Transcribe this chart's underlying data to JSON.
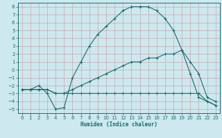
{
  "xlabel": "Humidex (Indice chaleur)",
  "background_color": "#cde8ee",
  "grid_color": "#aacdd6",
  "line_color": "#1a6b6b",
  "xlim": [
    -0.5,
    23.5
  ],
  "ylim": [
    -5.5,
    8.5
  ],
  "xticks": [
    0,
    1,
    2,
    3,
    4,
    5,
    6,
    7,
    8,
    9,
    10,
    11,
    12,
    13,
    14,
    15,
    16,
    17,
    18,
    19,
    20,
    21,
    22,
    23
  ],
  "yticks": [
    -5,
    -4,
    -3,
    -2,
    -1,
    0,
    1,
    2,
    3,
    4,
    5,
    6,
    7,
    8
  ],
  "line1_x": [
    0,
    1,
    2,
    3,
    4,
    5,
    6,
    7,
    8,
    9,
    10,
    11,
    12,
    13,
    14,
    15,
    16,
    17,
    18,
    19,
    20,
    21,
    22,
    23
  ],
  "line1_y": [
    -2.5,
    -2.5,
    -2,
    -3,
    -5,
    -4.8,
    -1,
    1,
    3,
    4.5,
    5.5,
    6.5,
    7.5,
    8,
    8,
    8,
    7.5,
    6.5,
    5,
    2.5,
    -0.5,
    -3.5,
    -4,
    -4.5
  ],
  "line2_x": [
    0,
    1,
    2,
    3,
    4,
    5,
    6,
    7,
    8,
    9,
    10,
    11,
    12,
    13,
    14,
    15,
    16,
    17,
    18,
    19,
    20,
    21,
    22,
    23
  ],
  "line2_y": [
    -2.5,
    -2.5,
    -2.5,
    -2.5,
    -3,
    -3,
    -2.5,
    -2,
    -1.5,
    -1,
    -0.5,
    0,
    0.5,
    1,
    1,
    1.5,
    1.5,
    2,
    2,
    2.5,
    1,
    -0.5,
    -3.5,
    -4
  ],
  "line3_x": [
    0,
    1,
    2,
    3,
    4,
    5,
    6,
    7,
    8,
    9,
    10,
    11,
    12,
    13,
    14,
    15,
    16,
    17,
    18,
    19,
    20,
    21,
    22,
    23
  ],
  "line3_y": [
    -2.5,
    -2.5,
    -2.5,
    -2.5,
    -3,
    -3,
    -3,
    -3,
    -3,
    -3,
    -3,
    -3,
    -3,
    -3,
    -3,
    -3,
    -3,
    -3,
    -3,
    -3,
    -3,
    -3,
    -4,
    -4.5
  ]
}
